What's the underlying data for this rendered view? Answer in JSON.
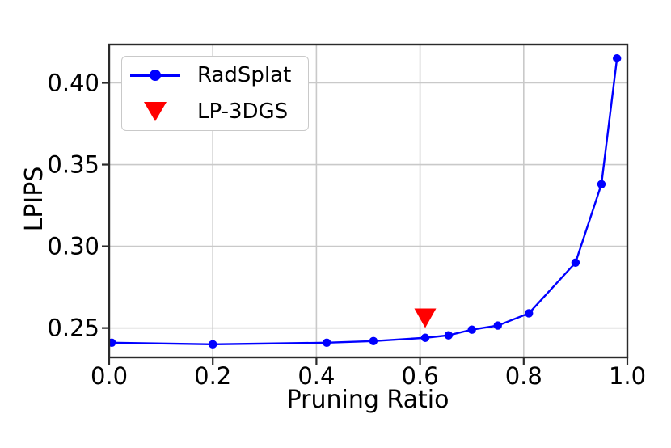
{
  "chart_data": {
    "type": "line",
    "title": "",
    "xlabel": "Pruning Ratio",
    "ylabel": "LPIPS",
    "xlim": [
      0,
      1.0
    ],
    "ylim": [
      0.232,
      0.4235
    ],
    "xticks": [
      0,
      0.2,
      0.4,
      0.6,
      0.8,
      1.0
    ],
    "xtick_labels": [
      "0.0",
      "0.2",
      "0.4",
      "0.6",
      "0.8",
      "1.0"
    ],
    "yticks": [
      0.25,
      0.3,
      0.35,
      0.4
    ],
    "ytick_labels": [
      "0.25",
      "0.30",
      "0.35",
      "0.40"
    ],
    "grid": true,
    "legend_position": "upper-left",
    "series": [
      {
        "name": "RadSplat",
        "color": "#0000ff",
        "marker": "circle",
        "line": true,
        "x": [
          0.005,
          0.2,
          0.42,
          0.51,
          0.61,
          0.655,
          0.7,
          0.75,
          0.81,
          0.9,
          0.95,
          0.98
        ],
        "y": [
          0.241,
          0.24,
          0.241,
          0.242,
          0.244,
          0.2455,
          0.249,
          0.2515,
          0.259,
          0.29,
          0.338,
          0.415
        ]
      }
    ],
    "annotations": [
      {
        "name": "LP-3DGS",
        "marker": "triangle-down",
        "color": "#ff0000",
        "x": 0.61,
        "y": 0.256
      }
    ],
    "style": {
      "grid_color": "#c9c9c9",
      "spine_color": "#2a2a2a",
      "text_color": "#000000",
      "background": "#ffffff"
    }
  }
}
